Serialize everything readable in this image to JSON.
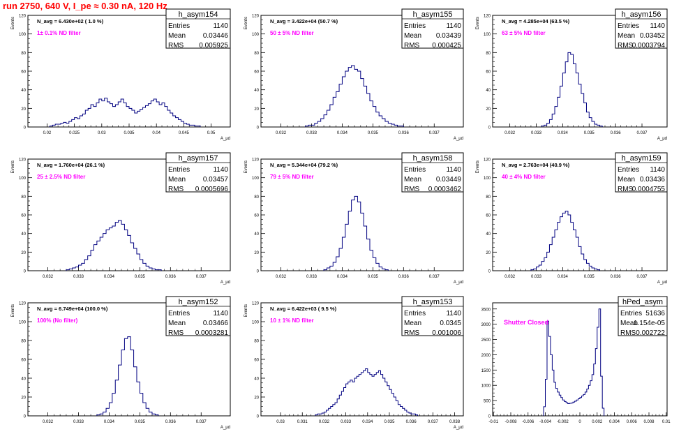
{
  "page_title": "run 2750,   640 V, I_pe ≈ 0.30 nA, 120 Hz",
  "chart_data": [
    {
      "type": "bar",
      "name": "h_asym154",
      "stats": {
        "entries": "1140",
        "mean": "0.03446",
        "rms": "0.005925"
      },
      "n_avg": "N_avg = 6.430e+02 ( 1.0 %)",
      "filter": "1± 0.1% ND filter",
      "ylabel": "Events",
      "xlabel": "A_μd",
      "xlim": [
        0.0165,
        0.0535
      ],
      "ylim": [
        0,
        120
      ],
      "xticks": [
        0.02,
        0.025,
        0.03,
        0.035,
        0.04,
        0.045,
        0.05
      ],
      "xtick_labels": [
        "0.02",
        "0.025",
        "0.03",
        "0.035",
        "0.04",
        "0.045",
        "0.05"
      ],
      "yticks": [
        0,
        20,
        40,
        60,
        80,
        100,
        120
      ],
      "bins": {
        "start": 0.0205,
        "width": 0.0005,
        "counts": [
          1,
          2,
          3,
          3,
          4,
          5,
          4,
          6,
          8,
          10,
          9,
          12,
          14,
          18,
          20,
          24,
          22,
          26,
          30,
          28,
          31,
          27,
          25,
          22,
          24,
          27,
          30,
          26,
          22,
          20,
          18,
          15,
          17,
          19,
          21,
          23,
          25,
          28,
          30,
          27,
          24,
          26,
          22,
          18,
          15,
          12,
          10,
          8,
          6,
          4,
          3,
          2,
          2,
          1,
          1
        ]
      }
    },
    {
      "type": "bar",
      "name": "h_asym155",
      "stats": {
        "entries": "1140",
        "mean": "0.03439",
        "rms": "0.000425"
      },
      "n_avg": "N_avg = 3.422e+04 (50.7 %)",
      "filter": "50 ± 5% ND filter",
      "ylabel": "Events",
      "xlabel": "A_μd",
      "xlim": [
        0.03135,
        0.03795
      ],
      "ylim": [
        0,
        120
      ],
      "xticks": [
        0.032,
        0.033,
        0.034,
        0.035,
        0.036,
        0.037
      ],
      "xtick_labels": [
        "0.032",
        "0.033",
        "0.034",
        "0.035",
        "0.036",
        "0.037"
      ],
      "yticks": [
        0,
        20,
        40,
        60,
        80,
        100,
        120
      ],
      "bins": {
        "start": 0.0328,
        "width": 0.0001,
        "counts": [
          1,
          2,
          2,
          4,
          6,
          9,
          13,
          18,
          24,
          32,
          38,
          46,
          54,
          60,
          64,
          66,
          62,
          60,
          52,
          44,
          36,
          28,
          22,
          16,
          12,
          9,
          6,
          4,
          3,
          2,
          1,
          1
        ]
      }
    },
    {
      "type": "bar",
      "name": "h_asym156",
      "stats": {
        "entries": "1140",
        "mean": "0.03452",
        "rms": "0.0003794"
      },
      "n_avg": "N_avg = 4.285e+04 (63.5 %)",
      "filter": "63 ± 5% ND filter",
      "ylabel": "Events",
      "xlabel": "A_μd",
      "xlim": [
        0.03135,
        0.03795
      ],
      "ylim": [
        0,
        120
      ],
      "xticks": [
        0.032,
        0.033,
        0.034,
        0.035,
        0.036,
        0.037
      ],
      "xtick_labels": [
        "0.032",
        "0.033",
        "0.034",
        "0.035",
        "0.036",
        "0.037"
      ],
      "yticks": [
        0,
        20,
        40,
        60,
        80,
        100,
        120
      ],
      "bins": {
        "start": 0.0332,
        "width": 0.0001,
        "counts": [
          1,
          2,
          4,
          8,
          14,
          22,
          32,
          44,
          58,
          70,
          80,
          78,
          68,
          58,
          46,
          36,
          26,
          16,
          10,
          6,
          3,
          2,
          1
        ]
      }
    },
    {
      "type": "bar",
      "name": "h_asym157",
      "stats": {
        "entries": "1140",
        "mean": "0.03457",
        "rms": "0.0005696"
      },
      "n_avg": "N_avg = 1.760e+04 (26.1 %)",
      "filter": "25 ± 2.5% ND filter",
      "ylabel": "Events",
      "xlabel": "A_μd",
      "xlim": [
        0.03135,
        0.03795
      ],
      "ylim": [
        0,
        120
      ],
      "xticks": [
        0.032,
        0.033,
        0.034,
        0.035,
        0.036,
        0.037
      ],
      "xtick_labels": [
        "0.032",
        "0.033",
        "0.034",
        "0.035",
        "0.036",
        "0.037"
      ],
      "yticks": [
        0,
        20,
        40,
        60,
        80,
        100,
        120
      ],
      "bins": {
        "start": 0.0326,
        "width": 0.0001,
        "counts": [
          1,
          2,
          3,
          4,
          6,
          8,
          12,
          16,
          22,
          28,
          32,
          36,
          40,
          44,
          46,
          48,
          52,
          54,
          50,
          44,
          38,
          30,
          24,
          18,
          12,
          8,
          5,
          3,
          2,
          1,
          1
        ]
      }
    },
    {
      "type": "bar",
      "name": "h_asym158",
      "stats": {
        "entries": "1140",
        "mean": "0.03449",
        "rms": "0.0003462"
      },
      "n_avg": "N_avg = 5.344e+04 (79.2 %)",
      "filter": "79 ± 5% ND filter",
      "ylabel": "Events",
      "xlabel": "A_μd",
      "xlim": [
        0.03135,
        0.03795
      ],
      "ylim": [
        0,
        120
      ],
      "xticks": [
        0.032,
        0.033,
        0.034,
        0.035,
        0.036,
        0.037
      ],
      "xtick_labels": [
        "0.032",
        "0.033",
        "0.034",
        "0.035",
        "0.036",
        "0.037"
      ],
      "yticks": [
        0,
        20,
        40,
        60,
        80,
        100,
        120
      ],
      "bins": {
        "start": 0.0334,
        "width": 0.0001,
        "counts": [
          1,
          3,
          5,
          9,
          15,
          24,
          36,
          50,
          64,
          76,
          80,
          74,
          62,
          48,
          34,
          22,
          14,
          8,
          4,
          2,
          1
        ]
      }
    },
    {
      "type": "bar",
      "name": "h_asym159",
      "stats": {
        "entries": "1140",
        "mean": "0.03436",
        "rms": "0.0004755"
      },
      "n_avg": "N_avg = 2.763e+04 (40.9 %)",
      "filter": "40 ± 4% ND filter",
      "ylabel": "Events",
      "xlabel": "A_μd",
      "xlim": [
        0.03135,
        0.03795
      ],
      "ylim": [
        0,
        120
      ],
      "xticks": [
        0.032,
        0.033,
        0.034,
        0.035,
        0.036,
        0.037
      ],
      "xtick_labels": [
        "0.032",
        "0.033",
        "0.034",
        "0.035",
        "0.036",
        "0.037"
      ],
      "yticks": [
        0,
        20,
        40,
        60,
        80,
        100,
        120
      ],
      "bins": {
        "start": 0.0328,
        "width": 0.0001,
        "counts": [
          1,
          2,
          4,
          6,
          10,
          14,
          20,
          28,
          36,
          44,
          52,
          58,
          62,
          64,
          60,
          52,
          44,
          36,
          26,
          18,
          12,
          8,
          5,
          3,
          2,
          1
        ]
      }
    },
    {
      "type": "bar",
      "name": "h_asym152",
      "stats": {
        "entries": "1140",
        "mean": "0.03466",
        "rms": "0.0003281"
      },
      "n_avg": "N_avg = 6.749e+04 (100.0 %)",
      "filter": "100% (No filter)",
      "ylabel": "Events",
      "xlabel": "A_μd",
      "xlim": [
        0.03135,
        0.03795
      ],
      "ylim": [
        0,
        120
      ],
      "xticks": [
        0.032,
        0.033,
        0.034,
        0.035,
        0.036,
        0.037
      ],
      "xtick_labels": [
        "0.032",
        "0.033",
        "0.034",
        "0.035",
        "0.036",
        "0.037"
      ],
      "yticks": [
        0,
        20,
        40,
        60,
        80,
        100,
        120
      ],
      "bins": {
        "start": 0.0336,
        "width": 0.0001,
        "counts": [
          1,
          2,
          4,
          8,
          14,
          24,
          38,
          54,
          70,
          82,
          84,
          70,
          52,
          36,
          24,
          14,
          8,
          4,
          2,
          1
        ]
      }
    },
    {
      "type": "bar",
      "name": "h_asym153",
      "stats": {
        "entries": "1140",
        "mean": "0.0345",
        "rms": "0.001006"
      },
      "n_avg": "N_avg = 6.422e+03 ( 9.5 %)",
      "filter": "10 ± 1% ND filter",
      "ylabel": "Events",
      "xlabel": "A_μd",
      "xlim": [
        0.0291,
        0.0384
      ],
      "ylim": [
        0,
        120
      ],
      "xticks": [
        0.03,
        0.031,
        0.032,
        0.033,
        0.034,
        0.035,
        0.036,
        0.037,
        0.038
      ],
      "xtick_labels": [
        "0.03",
        "0.031",
        "0.032",
        "0.033",
        "0.034",
        "0.035",
        "0.036",
        "0.037",
        "0.038"
      ],
      "yticks": [
        0,
        20,
        40,
        60,
        80,
        100,
        120
      ],
      "bins": {
        "start": 0.0316,
        "width": 0.0001,
        "counts": [
          1,
          2,
          2,
          3,
          4,
          6,
          8,
          10,
          12,
          14,
          18,
          22,
          26,
          30,
          34,
          36,
          38,
          36,
          40,
          42,
          44,
          46,
          48,
          50,
          46,
          44,
          42,
          44,
          46,
          48,
          44,
          40,
          36,
          32,
          28,
          24,
          20,
          16,
          12,
          10,
          8,
          6,
          4,
          3,
          2,
          2,
          1
        ]
      }
    },
    {
      "type": "bar",
      "name": "hPed_asym",
      "stats": {
        "entries": "51636",
        "mean": "1.154e-05",
        "rms": "0.002722"
      },
      "annotation": "Shutter Closed",
      "xlim": [
        -0.0101,
        0.0101
      ],
      "ylim": [
        0,
        3700
      ],
      "xticks": [
        -0.01,
        -0.008,
        -0.006,
        -0.004,
        -0.002,
        0,
        0.002,
        0.004,
        0.006,
        0.008,
        0.01
      ],
      "xtick_labels": [
        "-0.01",
        "-0.008",
        "-0.006",
        "-0.004",
        "-0.002",
        "0",
        "0.002",
        "0.004",
        "0.006",
        "0.008",
        "0.01"
      ],
      "yticks": [
        0,
        500,
        1000,
        1500,
        2000,
        2500,
        3000,
        3500
      ],
      "bins": {
        "start": -0.0042,
        "width": 0.0002,
        "counts": [
          300,
          1200,
          3100,
          2600,
          2000,
          1500,
          1100,
          900,
          780,
          680,
          600,
          520,
          470,
          430,
          400,
          410,
          420,
          450,
          480,
          520,
          560,
          600,
          650,
          700,
          780,
          880,
          1000,
          1150,
          1350,
          1700,
          2200,
          2900,
          3500,
          1300,
          250
        ]
      }
    }
  ]
}
